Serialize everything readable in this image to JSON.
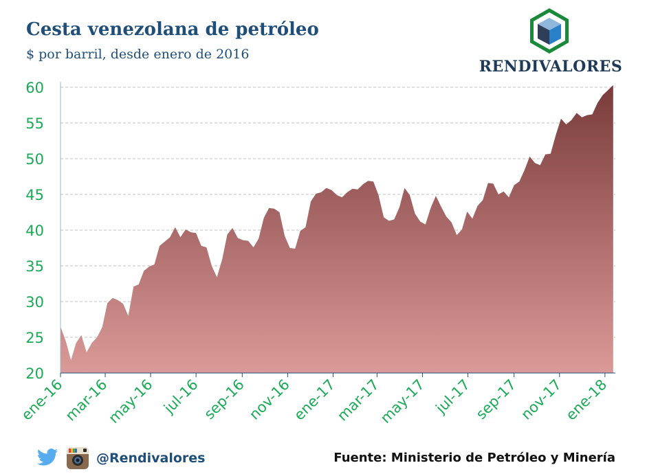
{
  "header": {
    "title": "Cesta venezolana de petróleo",
    "subtitle": "$ por barril, desde enero de 2016"
  },
  "logo": {
    "text": "RENDIVALORES"
  },
  "footer": {
    "handle": "@Rendivalores",
    "source": "Fuente: Ministerio de Petróleo y Minería",
    "icons": [
      "twitter-icon",
      "instagram-icon"
    ]
  },
  "colors": {
    "axis_text": "#1aaa55",
    "title": "#1f4e79",
    "area_top": "#7a3b3b",
    "area_bottom": "#d99a98",
    "grid": "#bfbfbf"
  },
  "chart_data": {
    "type": "area",
    "title": "Cesta venezolana de petróleo",
    "subtitle": "$ por barril, desde enero de 2016",
    "xlabel": "",
    "ylabel": "",
    "ylim": [
      20,
      60
    ],
    "yticks": [
      20,
      25,
      30,
      35,
      40,
      45,
      50,
      55,
      60
    ],
    "grid": true,
    "legend": "none",
    "x_range": [
      "2016-01-01",
      "2018-01-15"
    ],
    "xtick_labels": [
      "ene-16",
      "mar-16",
      "may-16",
      "jul-16",
      "sep-16",
      "nov-16",
      "ene-17",
      "mar-17",
      "may-17",
      "jul-17",
      "sep-17",
      "nov-17",
      "ene-18"
    ],
    "xtick_dates": [
      "2016-01-01",
      "2016-03-01",
      "2016-05-01",
      "2016-07-01",
      "2016-09-01",
      "2016-11-01",
      "2017-01-01",
      "2017-03-01",
      "2017-05-01",
      "2017-07-01",
      "2017-09-01",
      "2017-11-01",
      "2018-01-01"
    ],
    "series": [
      {
        "x": [
          "2016-01-01",
          "2016-01-08",
          "2016-01-15",
          "2016-01-22",
          "2016-01-29",
          "2016-02-05",
          "2016-02-12",
          "2016-02-19",
          "2016-02-26",
          "2016-03-04",
          "2016-03-11",
          "2016-03-18",
          "2016-03-25",
          "2016-04-01",
          "2016-04-08",
          "2016-04-15",
          "2016-04-22",
          "2016-04-29",
          "2016-05-06",
          "2016-05-13",
          "2016-05-20",
          "2016-05-27",
          "2016-06-03",
          "2016-06-10",
          "2016-06-17",
          "2016-06-24",
          "2016-07-01",
          "2016-07-08",
          "2016-07-15",
          "2016-07-22",
          "2016-07-29",
          "2016-08-05",
          "2016-08-12",
          "2016-08-19",
          "2016-08-26",
          "2016-09-02",
          "2016-09-09",
          "2016-09-16",
          "2016-09-23",
          "2016-09-30",
          "2016-10-07",
          "2016-10-14",
          "2016-10-21",
          "2016-10-28",
          "2016-11-04",
          "2016-11-11",
          "2016-11-18",
          "2016-11-25",
          "2016-12-02",
          "2016-12-09",
          "2016-12-16",
          "2016-12-23",
          "2016-12-30",
          "2017-01-06",
          "2017-01-13",
          "2017-01-20",
          "2017-01-27",
          "2017-02-03",
          "2017-02-10",
          "2017-02-17",
          "2017-02-24",
          "2017-03-03",
          "2017-03-10",
          "2017-03-17",
          "2017-03-24",
          "2017-03-31",
          "2017-04-07",
          "2017-04-14",
          "2017-04-21",
          "2017-04-28",
          "2017-05-05",
          "2017-05-12",
          "2017-05-19",
          "2017-05-26",
          "2017-06-02",
          "2017-06-09",
          "2017-06-16",
          "2017-06-23",
          "2017-06-30",
          "2017-07-07",
          "2017-07-14",
          "2017-07-21",
          "2017-07-28",
          "2017-08-04",
          "2017-08-11",
          "2017-08-18",
          "2017-08-25",
          "2017-09-01",
          "2017-09-08",
          "2017-09-15",
          "2017-09-22",
          "2017-09-29",
          "2017-10-06",
          "2017-10-13",
          "2017-10-20",
          "2017-10-27",
          "2017-11-03",
          "2017-11-10",
          "2017-11-17",
          "2017-11-24",
          "2017-12-01",
          "2017-12-08",
          "2017-12-15",
          "2017-12-22",
          "2017-12-29",
          "2018-01-05",
          "2018-01-12"
        ],
        "values": [
          26.5,
          24.5,
          21.8,
          24.2,
          25.3,
          22.9,
          24.2,
          25.0,
          26.4,
          29.8,
          30.5,
          30.2,
          29.7,
          28.0,
          32.1,
          32.4,
          34.3,
          34.9,
          35.2,
          37.8,
          38.4,
          39.0,
          40.4,
          39.0,
          40.1,
          39.7,
          39.6,
          37.8,
          37.6,
          35.0,
          33.4,
          35.9,
          39.4,
          40.3,
          38.9,
          38.6,
          38.5,
          37.6,
          38.8,
          41.7,
          43.1,
          43.0,
          42.5,
          39.2,
          37.5,
          37.4,
          39.9,
          40.4,
          44.0,
          45.1,
          45.3,
          45.9,
          45.6,
          44.9,
          44.6,
          45.3,
          45.8,
          45.7,
          46.4,
          46.9,
          46.8,
          44.9,
          41.8,
          41.3,
          41.5,
          43.2,
          45.9,
          44.9,
          42.3,
          41.2,
          40.8,
          43.1,
          44.8,
          43.3,
          41.9,
          41.1,
          39.3,
          40.1,
          42.6,
          41.6,
          43.4,
          44.2,
          46.6,
          46.5,
          45.0,
          45.4,
          44.6,
          46.3,
          46.8,
          48.4,
          50.3,
          49.4,
          49.1,
          50.6,
          50.7,
          53.3,
          55.6,
          54.8,
          55.4,
          56.4,
          55.8,
          56.1,
          56.2,
          57.8,
          58.9,
          59.6,
          60.3
        ]
      }
    ]
  }
}
